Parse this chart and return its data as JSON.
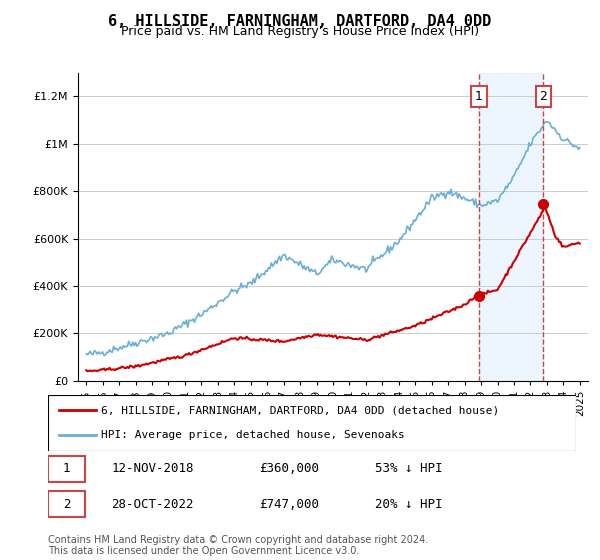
{
  "title": "6, HILLSIDE, FARNINGHAM, DARTFORD, DA4 0DD",
  "subtitle": "Price paid vs. HM Land Registry's House Price Index (HPI)",
  "xlabel": "",
  "ylabel": "",
  "ylim": [
    0,
    1300000
  ],
  "yticks": [
    0,
    200000,
    400000,
    600000,
    800000,
    1000000,
    1200000
  ],
  "ytick_labels": [
    "£0",
    "£200K",
    "£400K",
    "£600K",
    "£800K",
    "£1M",
    "£1.2M"
  ],
  "hpi_color": "#6baed6",
  "sale_color": "#cc0000",
  "annotation_color": "#cc0000",
  "background_color": "#ffffff",
  "legend_label_sale": "6, HILLSIDE, FARNINGHAM, DARTFORD, DA4 0DD (detached house)",
  "legend_label_hpi": "HPI: Average price, detached house, Sevenoaks",
  "sale1_label": "1",
  "sale1_date": "12-NOV-2018",
  "sale1_price": "£360,000",
  "sale1_pct": "53% ↓ HPI",
  "sale2_label": "2",
  "sale2_date": "28-OCT-2022",
  "sale2_price": "£747,000",
  "sale2_pct": "20% ↓ HPI",
  "footer": "Contains HM Land Registry data © Crown copyright and database right 2024.\nThis data is licensed under the Open Government Licence v3.0.",
  "vline_color_1": "#cc0000",
  "vline_color_2": "#cc0000",
  "shade_color": "#ddeeff",
  "marker_color": "#cc0000"
}
